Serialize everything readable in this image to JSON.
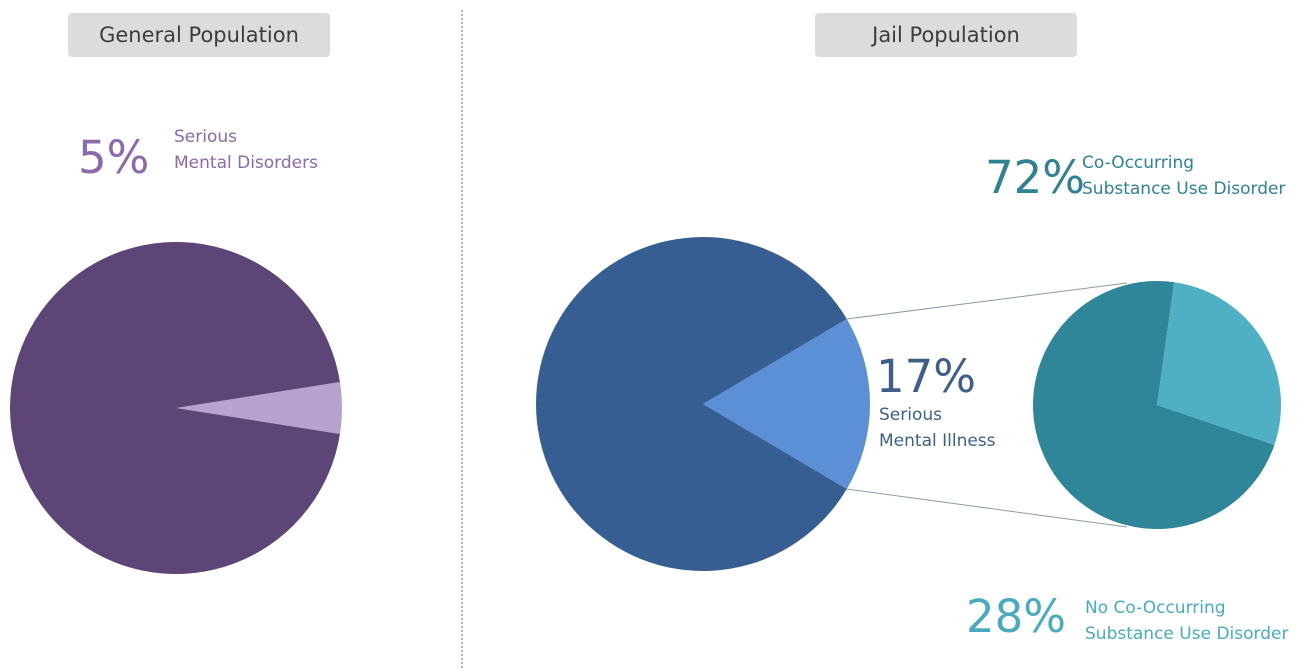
{
  "panels": {
    "general": {
      "title": "General Population"
    },
    "jail": {
      "title": "Jail Population"
    }
  },
  "colors": {
    "general_main": "#5e4578",
    "general_slice": "#b7a3cd",
    "jail_main": "#365e93",
    "jail_slice": "#5b8fd6",
    "sub_main": "#2f8698",
    "sub_slice": "#4fafc4",
    "text_purple": "#8a6aaa",
    "text_blue": "#3f5f89",
    "text_teal": "#2f8193",
    "text_light_teal": "#49aac0"
  },
  "chart_data": [
    {
      "type": "pie",
      "title": "General Population",
      "slices": [
        {
          "label": "Serious Mental Disorders",
          "value": 5
        },
        {
          "label": "",
          "value": 95
        }
      ]
    },
    {
      "type": "pie",
      "title": "Jail Population",
      "slices": [
        {
          "label": "Serious Mental Illness",
          "value": 17
        },
        {
          "label": "",
          "value": 83
        }
      ]
    },
    {
      "type": "pie",
      "title": "",
      "slices": [
        {
          "label": "Co-Occurring Substance Use Disorder",
          "value": 72
        },
        {
          "label": "No Co-Occurring Substance Use Disorder",
          "value": 28
        }
      ]
    }
  ],
  "annotations": {
    "general": {
      "pct": "5%",
      "line1": "Serious",
      "line2": "Mental Disorders"
    },
    "jail": {
      "pct": "17%",
      "line1": "Serious",
      "line2": "Mental Illness"
    },
    "co_occurring": {
      "pct": "72%",
      "line1": "Co-Occurring",
      "line2": "Substance Use Disorder"
    },
    "no_co_occurring": {
      "pct": "28%",
      "line1": "No Co-Occurring",
      "line2": "Substance Use Disorder"
    }
  }
}
